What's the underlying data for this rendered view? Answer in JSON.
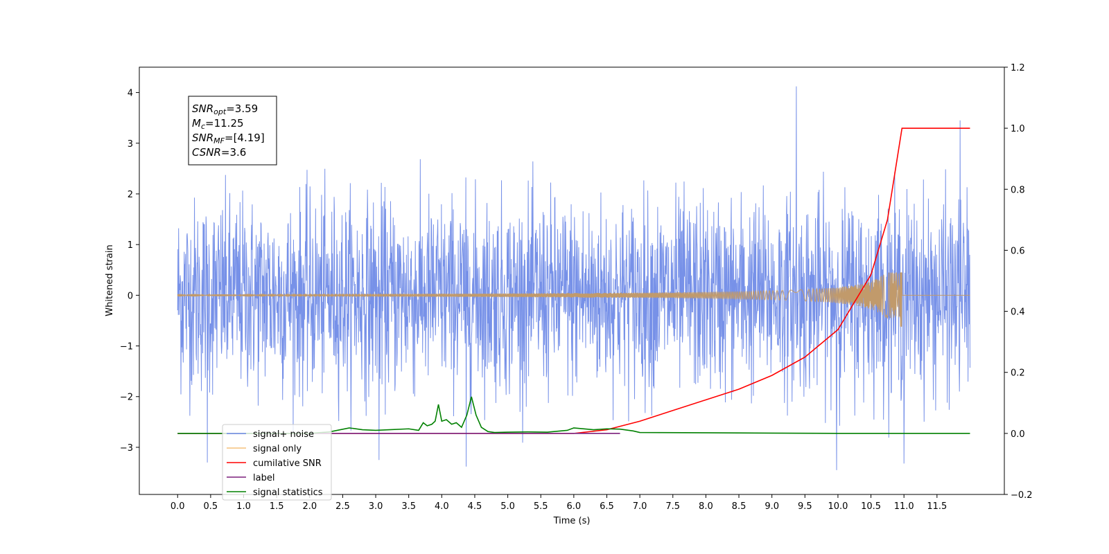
{
  "chart_data": {
    "type": "line",
    "title": "",
    "xlabel": "Time (s)",
    "ylabel_left": "Whitened strain",
    "ylabel_right": "",
    "xlim": [
      -0.58,
      12.52
    ],
    "ylim_left": [
      -3.93,
      4.5
    ],
    "ylim_right": [
      -0.2,
      1.2
    ],
    "x_ticks": [
      0.0,
      0.5,
      1.0,
      1.5,
      2.0,
      2.5,
      3.0,
      3.5,
      4.0,
      4.5,
      5.0,
      5.5,
      6.0,
      6.5,
      7.0,
      7.5,
      8.0,
      8.5,
      9.0,
      9.5,
      10.0,
      10.5,
      11.0,
      11.5
    ],
    "x_tick_labels": [
      "0.0",
      "0.5",
      "1.0",
      "1.5",
      "2.0",
      "2.5",
      "3.0",
      "3.5",
      "4.0",
      "4.5",
      "5.0",
      "5.5",
      "6.0",
      "6.5",
      "7.0",
      "7.5",
      "8.0",
      "8.5",
      "9.0",
      "9.5",
      "10.0",
      "10.5",
      "11.0",
      "11.5"
    ],
    "y_ticks_left": [
      -3,
      -2,
      -1,
      0,
      1,
      2,
      3,
      4
    ],
    "y_tick_labels_left": [
      "−3",
      "−2",
      "−1",
      "0",
      "1",
      "2",
      "3",
      "4"
    ],
    "y_ticks_right": [
      -0.2,
      0.0,
      0.2,
      0.4,
      0.6,
      0.8,
      1.0,
      1.2
    ],
    "y_tick_labels_right": [
      "−0.2",
      "0.0",
      "0.2",
      "0.4",
      "0.6",
      "0.8",
      "1.0",
      "1.2"
    ],
    "grid": false,
    "legend_position": "lower-left",
    "series": [
      {
        "name": "signal+ noise",
        "axis": "left",
        "color": "#6b88e6",
        "kind": "noise",
        "x_range": [
          0.0,
          12.0
        ],
        "typical_band": [
          -1.9,
          2.3
        ],
        "notable_peaks": [
          {
            "x": 9.37,
            "y": 4.12
          },
          {
            "x": 11.85,
            "y": 3.45
          },
          {
            "x": 9.98,
            "y": -3.45
          },
          {
            "x": 4.37,
            "y": -3.38
          },
          {
            "x": 11.0,
            "y": -3.32
          },
          {
            "x": 0.45,
            "y": -3.3
          },
          {
            "x": 3.05,
            "y": -3.25
          }
        ]
      },
      {
        "name": "signal only",
        "axis": "left",
        "color": "#f5a623",
        "kind": "chirp",
        "x_range": [
          0.0,
          12.0
        ],
        "merger_x": 10.97,
        "peak_amplitude": 0.45,
        "min_amplitude": -0.62
      },
      {
        "name": "cumilative SNR",
        "axis": "right",
        "color": "#ff0000",
        "x": [
          0.0,
          6.0,
          6.5,
          7.0,
          7.5,
          8.0,
          8.5,
          9.0,
          9.5,
          10.0,
          10.5,
          10.75,
          10.97,
          11.0,
          11.5,
          12.0
        ],
        "values": [
          0.0,
          0.0,
          0.012,
          0.04,
          0.075,
          0.11,
          0.145,
          0.19,
          0.25,
          0.34,
          0.52,
          0.7,
          1.0,
          1.0,
          1.0,
          1.0
        ]
      },
      {
        "name": "label",
        "axis": "right",
        "color": "#7b1f7b",
        "x": [
          0.0,
          6.7
        ],
        "values": [
          0.0,
          0.0
        ]
      },
      {
        "name": "signal statistics",
        "axis": "right",
        "color": "#008000",
        "x": [
          0.0,
          2.0,
          2.3,
          2.6,
          2.8,
          3.0,
          3.2,
          3.5,
          3.65,
          3.72,
          3.78,
          3.85,
          3.9,
          3.95,
          4.0,
          4.07,
          4.15,
          4.22,
          4.3,
          4.38,
          4.45,
          4.52,
          4.6,
          4.7,
          4.8,
          5.0,
          5.3,
          5.6,
          5.9,
          6.0,
          6.3,
          6.5,
          6.7,
          6.9,
          7.0,
          8.0,
          9.0,
          10.0,
          11.0,
          12.0
        ],
        "values": [
          0.0,
          0.0,
          0.005,
          0.018,
          0.012,
          0.01,
          0.012,
          0.015,
          0.01,
          0.035,
          0.025,
          0.03,
          0.04,
          0.095,
          0.04,
          0.045,
          0.03,
          0.035,
          0.02,
          0.06,
          0.12,
          0.06,
          0.02,
          0.006,
          0.003,
          0.004,
          0.005,
          0.004,
          0.01,
          0.018,
          0.012,
          0.015,
          0.014,
          0.008,
          0.003,
          0.002,
          0.001,
          0.0,
          0.0,
          0.0
        ]
      }
    ],
    "legend": [
      {
        "label": "signal+ noise",
        "color": "#6b88e6"
      },
      {
        "label": "signal only",
        "color": "#f5c07a"
      },
      {
        "label": "cumilative SNR",
        "color": "#ff0000"
      },
      {
        "label": "label",
        "color": "#7b1f7b"
      },
      {
        "label": "signal statistics",
        "color": "#008000"
      }
    ],
    "annotation": {
      "lines": [
        {
          "main": "SNR",
          "sub": "opt",
          "rest": "=3.59"
        },
        {
          "main": "M",
          "sub": "c",
          "rest": "=11.25"
        },
        {
          "main": "SNR",
          "sub": "MF",
          "rest": "=[4.19]"
        },
        {
          "main": "CSNR",
          "sub": "",
          "rest": "=3.6"
        }
      ]
    }
  }
}
